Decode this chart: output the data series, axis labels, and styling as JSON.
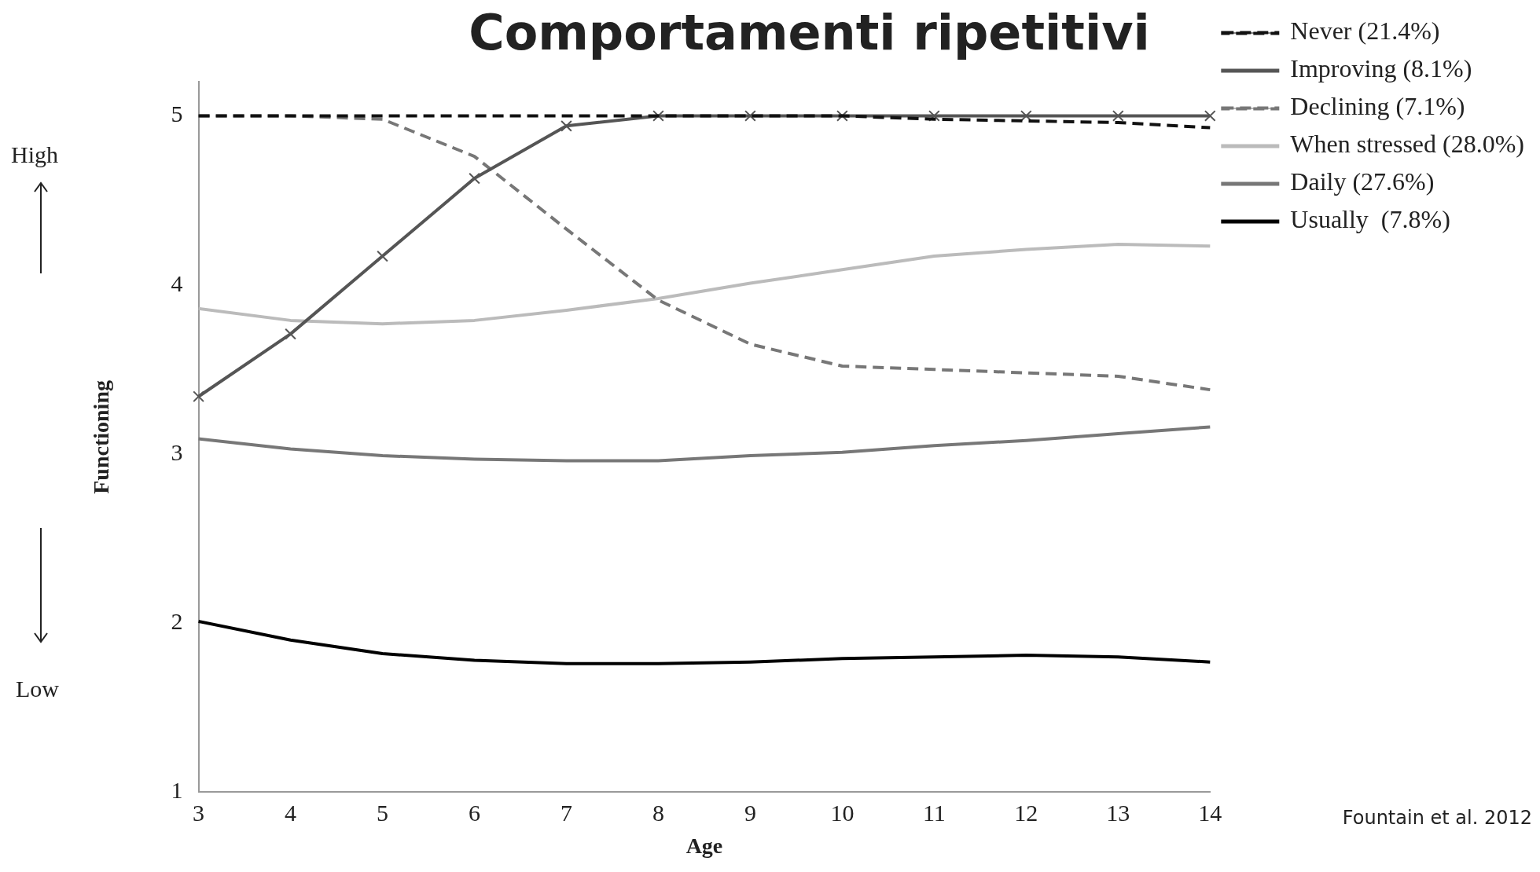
{
  "chart_data": {
    "type": "line",
    "title": "Comportamenti ripetitivi",
    "xlabel": "Age",
    "ylabel": "Functioning",
    "categories": [
      "3",
      "4",
      "5",
      "6",
      "7",
      "8",
      "9",
      "10",
      "11",
      "12",
      "13",
      "14"
    ],
    "ylim": [
      1,
      5.2
    ],
    "yticks": [
      1,
      2,
      3,
      4,
      5
    ],
    "grid": false,
    "legend": "top right",
    "annotations": [
      "High",
      "Low",
      "Fountain et al. 2012"
    ],
    "series": [
      {
        "name": "Never (21.4%)",
        "color": "#111111",
        "line_style": "dashed",
        "marker": "none",
        "values": [
          5,
          5,
          5,
          5,
          5,
          5,
          5,
          5,
          4.98,
          4.97,
          4.96,
          4.93
        ]
      },
      {
        "name": "Improving (8.1%)",
        "color": "#555555",
        "line_style": "solid",
        "marker": "cross",
        "values": [
          3.34,
          3.71,
          4.17,
          4.63,
          4.94,
          5,
          5,
          5,
          5,
          5,
          5,
          5
        ]
      },
      {
        "name": "Declining (7.1%)",
        "color": "#777777",
        "line_style": "dashed",
        "marker": "none",
        "values": [
          5,
          5,
          4.98,
          4.76,
          4.33,
          3.91,
          3.65,
          3.52,
          3.5,
          3.48,
          3.46,
          3.38
        ]
      },
      {
        "name": "When stressed (28.0%)",
        "color": "#bbbbbb",
        "line_style": "solid",
        "marker": "none",
        "values": [
          3.86,
          3.79,
          3.77,
          3.79,
          3.85,
          3.92,
          4.01,
          4.09,
          4.17,
          4.21,
          4.24,
          4.23
        ]
      },
      {
        "name": "Daily (27.6%)",
        "color": "#777777",
        "line_style": "solid",
        "marker": "none",
        "values": [
          3.09,
          3.03,
          2.99,
          2.97,
          2.96,
          2.96,
          2.99,
          3.01,
          3.05,
          3.08,
          3.12,
          3.16
        ]
      },
      {
        "name": "Usually  (7.8%)",
        "color": "#000000",
        "line_style": "solid",
        "marker": "none",
        "values": [
          2.01,
          1.9,
          1.82,
          1.78,
          1.76,
          1.76,
          1.77,
          1.79,
          1.8,
          1.81,
          1.8,
          1.77
        ]
      }
    ]
  }
}
